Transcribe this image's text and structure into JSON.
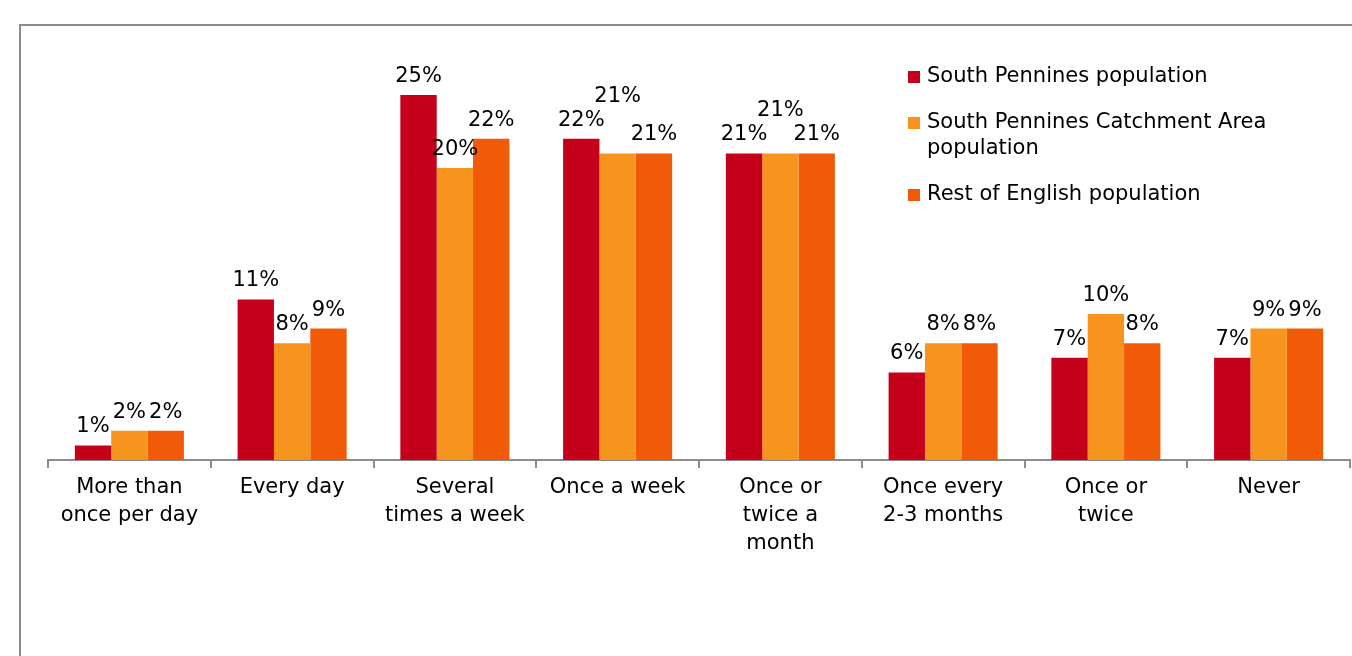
{
  "chart_data": {
    "type": "bar",
    "categories": [
      "More than once per day",
      "Every day",
      "Several times a week",
      "Once a week",
      "Once or twice a month",
      "Once every 2-3 months",
      "Once or twice",
      "Never"
    ],
    "series": [
      {
        "name": "South Pennines population",
        "color": "#c5001a",
        "values": [
          1,
          11,
          25,
          22,
          21,
          6,
          7,
          7
        ],
        "value_labels": [
          "1%",
          "11%",
          "25%",
          "22%",
          "21%",
          "6%",
          "7%",
          "7%"
        ]
      },
      {
        "name": "South Pennines Catchment Area population",
        "color": "#f7941d",
        "values": [
          2,
          8,
          20,
          21,
          21,
          8,
          10,
          9
        ],
        "value_labels": [
          "2%",
          "8%",
          "20%",
          "21%",
          "21%",
          "8%",
          "10%",
          "9%"
        ]
      },
      {
        "name": "Rest of English population",
        "color": "#f15a06",
        "values": [
          2,
          9,
          22,
          21,
          21,
          8,
          8,
          9
        ],
        "value_labels": [
          "2%",
          "9%",
          "22%",
          "21%",
          "21%",
          "8%",
          "8%",
          "9%"
        ]
      }
    ],
    "legend": "top right"
  }
}
